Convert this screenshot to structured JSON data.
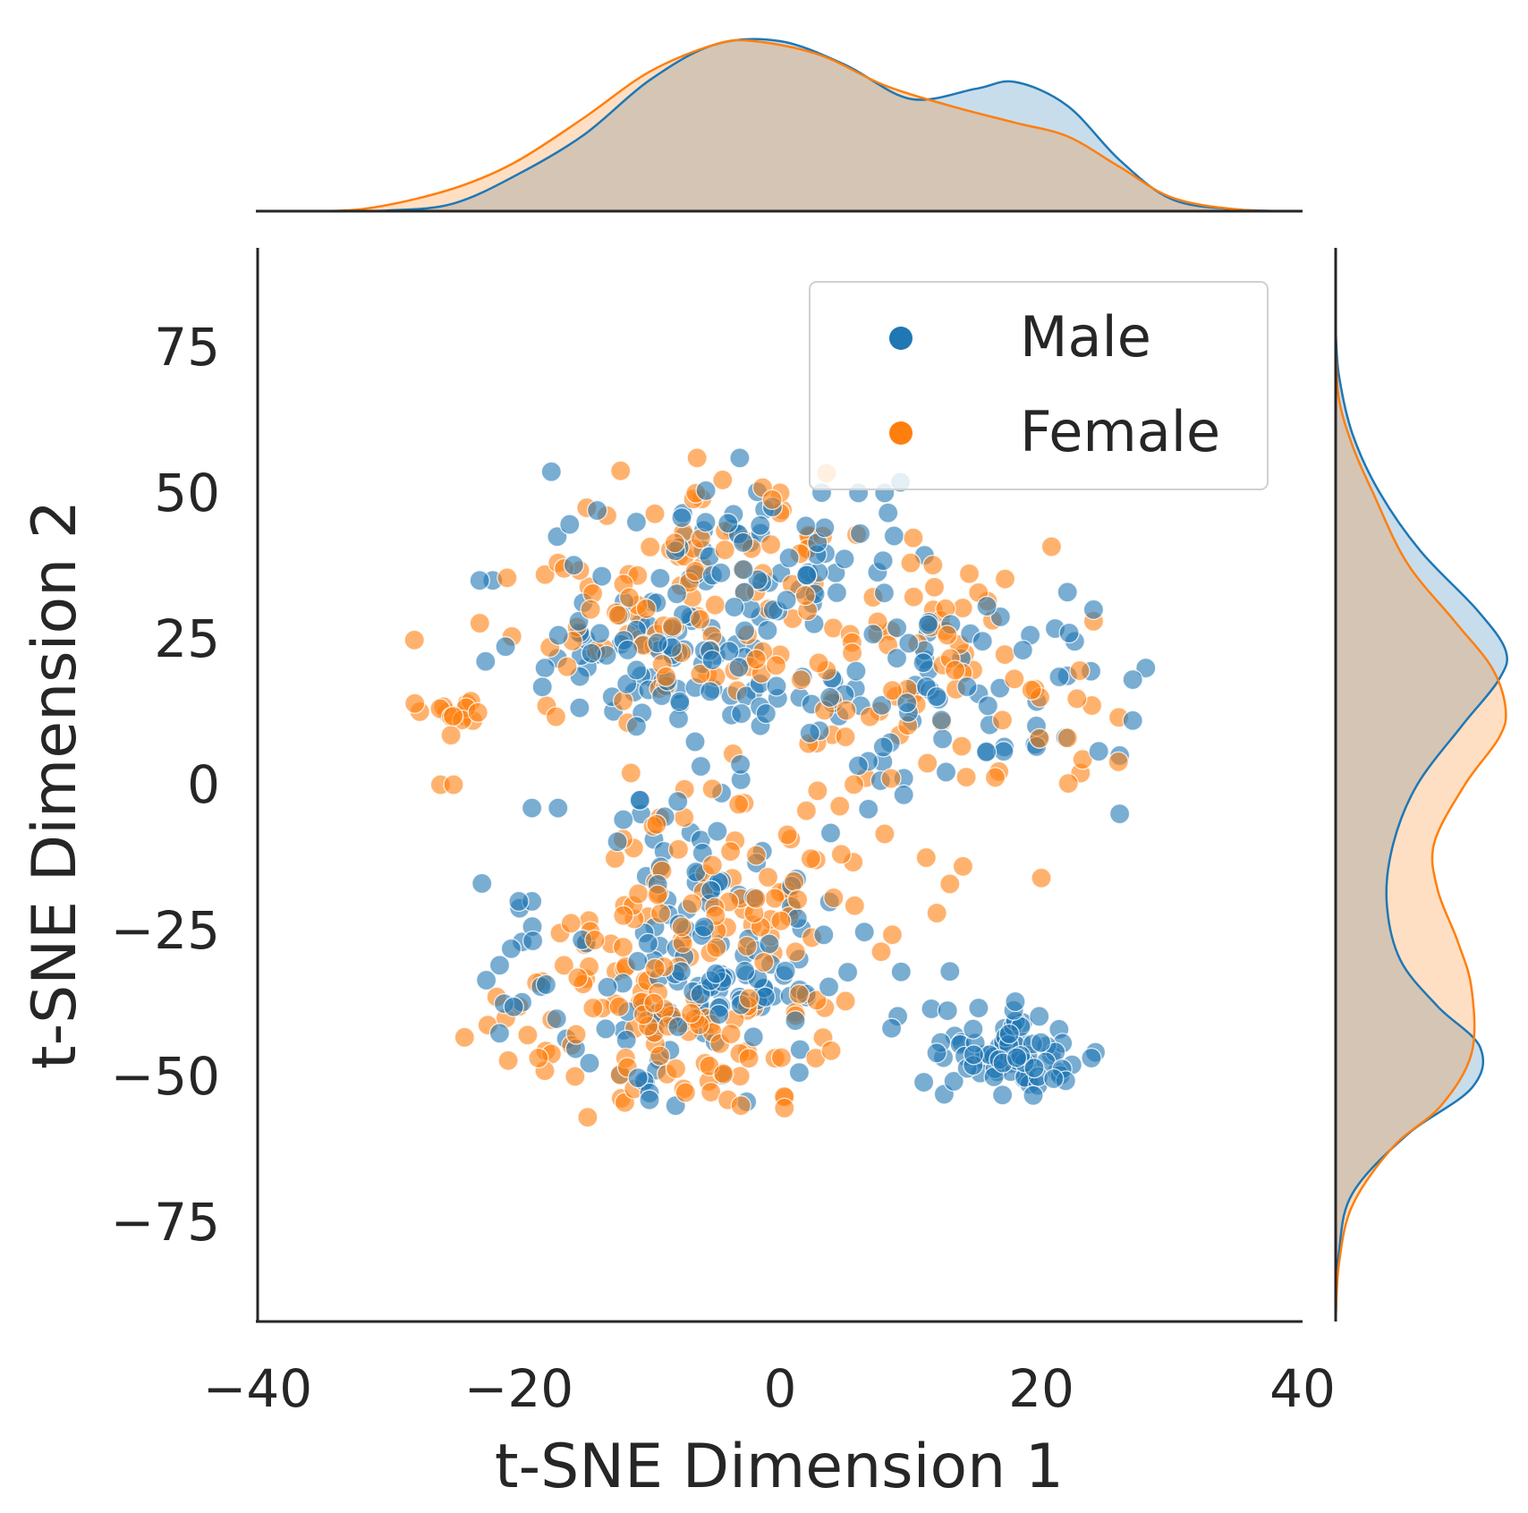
{
  "chart_data": {
    "type": "scatter",
    "subtype": "jointplot-with-kde-marginals",
    "title": "",
    "xlabel": "t-SNE Dimension 1",
    "ylabel": "t-SNE Dimension 2",
    "xlim": [
      -40,
      40
    ],
    "ylim": [
      -92,
      92
    ],
    "xticks": [
      -40,
      -20,
      0,
      20,
      40
    ],
    "yticks": [
      -75,
      -50,
      -25,
      0,
      25,
      50,
      75
    ],
    "xtick_labels": [
      "−40",
      "−20",
      "0",
      "20",
      "40"
    ],
    "ytick_labels": [
      "−75",
      "−50",
      "−25",
      "0",
      "25",
      "50",
      "75"
    ],
    "grid": false,
    "legend": {
      "position": "top-right",
      "entries": [
        "Male",
        "Female"
      ]
    },
    "series": [
      {
        "name": "Male",
        "color": "#1f77b4",
        "clusters": [
          {
            "center": [
              -3,
              40
            ],
            "spread": [
              6,
              7
            ],
            "count": 70
          },
          {
            "center": [
              -8,
              22
            ],
            "spread": [
              6,
              7
            ],
            "count": 90
          },
          {
            "center": [
              12,
              15
            ],
            "spread": [
              7,
              9
            ],
            "count": 80
          },
          {
            "center": [
              -5,
              -12
            ],
            "spread": [
              4,
              8
            ],
            "count": 35
          },
          {
            "center": [
              -6,
              -35
            ],
            "spread": [
              6,
              9
            ],
            "count": 110
          },
          {
            "center": [
              18,
              -46
            ],
            "spread": [
              3.5,
              4
            ],
            "count": 80
          },
          {
            "center": [
              -20,
              -28
            ],
            "spread": [
              2,
              5
            ],
            "count": 10
          }
        ],
        "points": [
          [
            -22,
            35
          ],
          [
            -23,
            35
          ],
          [
            -18,
            20
          ],
          [
            -19,
            -4
          ],
          [
            -17,
            -4
          ],
          [
            -11,
            10
          ],
          [
            -11,
            45
          ],
          [
            -14,
            47
          ],
          [
            -12,
            -6
          ],
          [
            22,
            33
          ],
          [
            24,
            30
          ],
          [
            27,
            18
          ],
          [
            28,
            20
          ],
          [
            27,
            11
          ],
          [
            26,
            5
          ],
          [
            26,
            -5
          ],
          [
            13,
            -32
          ],
          [
            11,
            -51
          ],
          [
            -8,
            -55
          ],
          [
            -10,
            -54
          ],
          [
            -20,
            -20
          ],
          [
            -19,
            -20
          ],
          [
            6,
            50
          ],
          [
            8,
            50
          ]
        ],
        "kde_x": [
          [
            -35,
            0
          ],
          [
            -30,
            0.004
          ],
          [
            -25,
            0.045
          ],
          [
            -20,
            0.22
          ],
          [
            -15,
            0.45
          ],
          [
            -10,
            0.77
          ],
          [
            -5,
            0.98
          ],
          [
            0,
            1.0
          ],
          [
            5,
            0.86
          ],
          [
            10,
            0.66
          ],
          [
            15,
            0.72
          ],
          [
            18,
            0.76
          ],
          [
            22,
            0.62
          ],
          [
            26,
            0.3
          ],
          [
            30,
            0.07
          ],
          [
            35,
            0.01
          ],
          [
            40,
            0
          ]
        ],
        "kde_y": [
          [
            -92,
            0
          ],
          [
            -80,
            0.02
          ],
          [
            -70,
            0.1
          ],
          [
            -60,
            0.42
          ],
          [
            -52,
            0.8
          ],
          [
            -45,
            0.85
          ],
          [
            -38,
            0.6
          ],
          [
            -30,
            0.38
          ],
          [
            -20,
            0.3
          ],
          [
            -10,
            0.34
          ],
          [
            0,
            0.48
          ],
          [
            10,
            0.74
          ],
          [
            18,
            0.96
          ],
          [
            23,
            1.0
          ],
          [
            30,
            0.83
          ],
          [
            40,
            0.5
          ],
          [
            50,
            0.26
          ],
          [
            60,
            0.1
          ],
          [
            70,
            0.02
          ],
          [
            78,
            0
          ]
        ]
      },
      {
        "name": "Female",
        "color": "#ff7f0e",
        "clusters": [
          {
            "center": [
              -3,
              43
            ],
            "spread": [
              5,
              6
            ],
            "count": 45
          },
          {
            "center": [
              -10,
              25
            ],
            "spread": [
              7,
              7
            ],
            "count": 60
          },
          {
            "center": [
              11,
              18
            ],
            "spread": [
              7,
              9
            ],
            "count": 80
          },
          {
            "center": [
              -3,
              -15
            ],
            "spread": [
              5,
              9
            ],
            "count": 70
          },
          {
            "center": [
              -8,
              -38
            ],
            "spread": [
              7,
              9
            ],
            "count": 120
          },
          {
            "center": [
              -25,
              12
            ],
            "spread": [
              2,
              1.5
            ],
            "count": 15
          }
        ],
        "points": [
          [
            -26,
            0
          ],
          [
            -25,
            0
          ],
          [
            14,
            -14
          ],
          [
            13,
            -17
          ],
          [
            12,
            -22
          ],
          [
            20,
            -16
          ],
          [
            10,
            38
          ],
          [
            -18,
            36
          ],
          [
            -17,
            38
          ],
          [
            24,
            28
          ],
          [
            22,
            8
          ],
          [
            23,
            2
          ],
          [
            -3,
            -55
          ],
          [
            -4,
            -54
          ],
          [
            -20,
            -38
          ],
          [
            -21,
            -40
          ],
          [
            0,
            50
          ]
        ],
        "kde_x": [
          [
            -35,
            0
          ],
          [
            -32,
            0.012
          ],
          [
            -28,
            0.07
          ],
          [
            -24,
            0.16
          ],
          [
            -20,
            0.3
          ],
          [
            -15,
            0.55
          ],
          [
            -10,
            0.82
          ],
          [
            -5,
            0.98
          ],
          [
            -2,
            1.0
          ],
          [
            3,
            0.92
          ],
          [
            8,
            0.74
          ],
          [
            13,
            0.62
          ],
          [
            18,
            0.52
          ],
          [
            22,
            0.44
          ],
          [
            26,
            0.26
          ],
          [
            30,
            0.08
          ],
          [
            35,
            0.01
          ],
          [
            40,
            0
          ]
        ],
        "kde_y": [
          [
            -92,
            0
          ],
          [
            -82,
            0.02
          ],
          [
            -72,
            0.1
          ],
          [
            -62,
            0.34
          ],
          [
            -55,
            0.62
          ],
          [
            -46,
            0.8
          ],
          [
            -35,
            0.8
          ],
          [
            -27,
            0.72
          ],
          [
            -18,
            0.6
          ],
          [
            -10,
            0.58
          ],
          [
            0,
            0.76
          ],
          [
            8,
            0.96
          ],
          [
            13,
            1.0
          ],
          [
            20,
            0.92
          ],
          [
            28,
            0.7
          ],
          [
            38,
            0.42
          ],
          [
            50,
            0.22
          ],
          [
            58,
            0.1
          ],
          [
            66,
            0.02
          ],
          [
            75,
            0
          ]
        ]
      }
    ],
    "overlap_color": "#c4c3bd",
    "axis_color": "#262626"
  }
}
